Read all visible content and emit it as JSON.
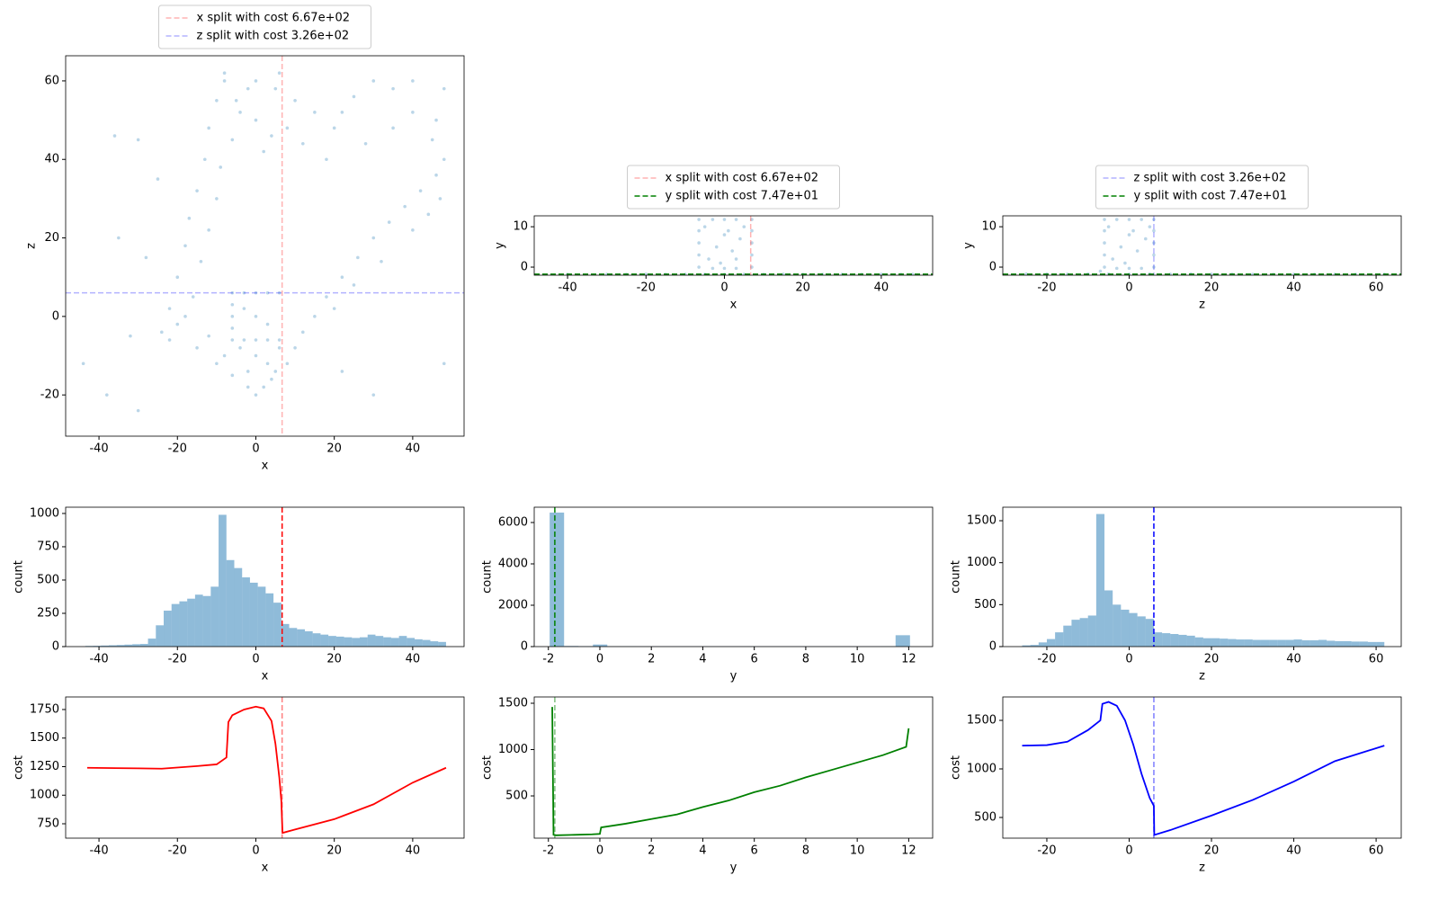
{
  "chart_data": [
    {
      "type": "scatter",
      "xlabel": "x",
      "ylabel": "z",
      "color": "#1f77b4",
      "alpha": 0.3,
      "x": [
        -24,
        -22,
        -20,
        -18,
        -17,
        -15,
        -13,
        -12,
        -10,
        -8,
        -20,
        -16,
        -14,
        -12,
        -10,
        -9,
        -6,
        -4,
        -2,
        -18,
        -22,
        -15,
        -10,
        -6,
        -2,
        0,
        2,
        5,
        -12,
        -8,
        -4,
        0,
        3,
        6,
        -2,
        4,
        8,
        10,
        12,
        15,
        -6,
        -6,
        -6,
        -6,
        -6,
        -3,
        0,
        3,
        6,
        -3,
        0,
        3,
        6,
        0,
        -3,
        3,
        18,
        22,
        26,
        30,
        34,
        38,
        42,
        46,
        48,
        20,
        25,
        32,
        40,
        44,
        47,
        46,
        48,
        45,
        40,
        35,
        0,
        5,
        10,
        15,
        20,
        25,
        30,
        35,
        40,
        -5,
        0,
        8,
        12,
        18,
        2,
        4,
        28,
        22,
        6,
        -8,
        -44,
        -38,
        -30,
        -35,
        -28,
        -32,
        -30,
        22,
        30,
        48,
        -36,
        -25
      ],
      "y": [
        -4,
        2,
        10,
        18,
        25,
        32,
        40,
        48,
        55,
        60,
        -2,
        5,
        14,
        22,
        30,
        38,
        45,
        52,
        58,
        0,
        -6,
        -8,
        -12,
        -15,
        -18,
        -20,
        -18,
        -14,
        -5,
        -10,
        -8,
        -10,
        -12,
        -8,
        -14,
        -16,
        -12,
        -8,
        -4,
        0,
        6,
        3,
        0,
        -3,
        -6,
        -6,
        -6,
        -6,
        -6,
        6,
        6,
        6,
        6,
        0,
        2,
        -2,
        5,
        10,
        15,
        20,
        24,
        28,
        32,
        36,
        40,
        2,
        8,
        14,
        22,
        26,
        30,
        50,
        58,
        45,
        52,
        48,
        60,
        58,
        55,
        52,
        48,
        56,
        60,
        58,
        60,
        55,
        50,
        48,
        44,
        40,
        42,
        46,
        44,
        52,
        62,
        62,
        -12,
        -20,
        -24,
        20,
        15,
        -5,
        45,
        -14,
        -20,
        -12,
        46,
        35
      ],
      "xlim": [
        -48.5,
        53.1
      ],
      "ylim": [
        -30.5,
        66.4
      ],
      "xticks": [
        -40,
        -20,
        0,
        20,
        40
      ],
      "yticks": [
        -20,
        0,
        20,
        40,
        60
      ],
      "lines": [
        {
          "name": "x split with cost 6.67e+02",
          "orient": "v",
          "at": 6.7,
          "color": "#ff0000",
          "alpha": 0.3
        },
        {
          "name": "z split with cost 3.26e+02",
          "orient": "h",
          "at": 6,
          "color": "#0000ff",
          "alpha": 0.3
        }
      ],
      "legend": "top"
    },
    {
      "type": "scatter",
      "xlabel": "x",
      "ylabel": "y",
      "color": "#1f77b4",
      "alpha": 0.3,
      "x": [
        -40,
        -30,
        -25,
        -20,
        -15,
        -10,
        -5,
        0,
        5,
        10,
        15,
        20,
        25,
        30,
        35,
        40,
        45,
        48,
        -6.5,
        -6.5,
        -6.5,
        -6.5,
        -6.5,
        7,
        7,
        7,
        7,
        7,
        -3,
        0,
        3,
        -3,
        0,
        3,
        -4,
        -2,
        0,
        2,
        4,
        5,
        -1,
        1,
        -5,
        3
      ],
      "y": [
        -1.8,
        -1.8,
        -1.8,
        -1.75,
        -1.8,
        -1.8,
        -1.8,
        -1.8,
        -1.8,
        -1.8,
        -1.75,
        -1.8,
        -1.8,
        -1.8,
        -1.8,
        -1.8,
        -1.8,
        -1.8,
        0,
        3,
        6,
        9,
        11.8,
        0,
        3,
        6,
        9,
        11.8,
        11.8,
        11.8,
        11.8,
        -0.3,
        -0.3,
        -0.3,
        2,
        5,
        8,
        4,
        7,
        10,
        1,
        9,
        10,
        2
      ],
      "xlim": [
        -48.5,
        53.1
      ],
      "ylim": [
        -2.0,
        12.7
      ],
      "xticks": [
        -40,
        -20,
        0,
        20,
        40
      ],
      "yticks": [
        0,
        10
      ],
      "lines": [
        {
          "name": "x split with cost 6.67e+02",
          "orient": "v",
          "at": 6.7,
          "color": "#ff0000",
          "alpha": 0.3
        },
        {
          "name": "y split with cost 7.47e+01",
          "orient": "h",
          "at": -1.75,
          "color": "#008000",
          "alpha": 1
        }
      ],
      "legend": "top"
    },
    {
      "type": "scatter",
      "xlabel": "z",
      "ylabel": "y",
      "color": "#1f77b4",
      "alpha": 0.3,
      "x": [
        -25,
        -20,
        -15,
        -10,
        -5,
        0,
        5,
        10,
        15,
        20,
        25,
        30,
        35,
        40,
        45,
        50,
        55,
        62,
        -6,
        -6,
        -6,
        -6,
        -6,
        6,
        6,
        6,
        6,
        6,
        -3,
        0,
        3,
        -3,
        0,
        3,
        -4,
        -2,
        0,
        2,
        4,
        5,
        -1,
        1,
        -5,
        -7
      ],
      "y": [
        -1.7,
        -1.7,
        -1.75,
        -1.7,
        -1.7,
        -1.75,
        -1.7,
        -1.75,
        -1.7,
        -1.75,
        -1.75,
        -1.8,
        -1.8,
        -1.8,
        -1.8,
        -1.8,
        -1.8,
        -1.8,
        0,
        3,
        6,
        9,
        11.8,
        0,
        3,
        6,
        9,
        11.8,
        11.8,
        11.8,
        11.8,
        -0.3,
        -0.3,
        -0.3,
        2,
        5,
        8,
        4,
        7,
        10,
        1,
        9,
        10,
        -1
      ],
      "xlim": [
        -30.7,
        66.1
      ],
      "ylim": [
        -2.0,
        12.7
      ],
      "xticks": [
        -20,
        0,
        20,
        40,
        60
      ],
      "yticks": [
        0,
        10
      ],
      "lines": [
        {
          "name": "z split with cost 3.26e+02",
          "orient": "v",
          "at": 6,
          "color": "#0000ff",
          "alpha": 0.3
        },
        {
          "name": "y split with cost 7.47e+01",
          "orient": "h",
          "at": -1.75,
          "color": "#008000",
          "alpha": 1
        }
      ],
      "legend": "top"
    },
    {
      "type": "histogram",
      "xlabel": "x",
      "ylabel": "count",
      "color": "#1f77b4",
      "alpha": 0.5,
      "bins": [
        -43.5,
        -41.5,
        -39.5,
        -37.5,
        -35.5,
        -33.5,
        -31.5,
        -29.5,
        -27.5,
        -25.5,
        -23.5,
        -21.5,
        -19.5,
        -17.5,
        -15.5,
        -13.5,
        -11.5,
        -9.5,
        -7.5,
        -5.5,
        -3.5,
        -1.5,
        0.5,
        2.5,
        4.5,
        6.5,
        8.5,
        10.5,
        12.5,
        14.5,
        16.5,
        18.5,
        20.5,
        22.5,
        24.5,
        26.5,
        28.5,
        30.5,
        32.5,
        34.5,
        36.5,
        38.5,
        40.5,
        42.5,
        44.5,
        46.5,
        48.5
      ],
      "counts": [
        5,
        6,
        8,
        10,
        12,
        15,
        18,
        20,
        60,
        160,
        270,
        320,
        340,
        360,
        390,
        380,
        450,
        990,
        650,
        590,
        520,
        480,
        450,
        400,
        330,
        170,
        140,
        130,
        115,
        100,
        90,
        80,
        75,
        70,
        65,
        70,
        90,
        80,
        70,
        65,
        80,
        65,
        55,
        50,
        40,
        35
      ],
      "xlim": [
        -48.5,
        53.1
      ],
      "ylim": [
        0,
        1047
      ],
      "xticks": [
        -40,
        -20,
        0,
        20,
        40
      ],
      "yticks": [
        0,
        250,
        500,
        750,
        1000
      ],
      "lines": [
        {
          "orient": "v",
          "at": 6.7,
          "color": "#ff0000",
          "alpha": 1
        }
      ]
    },
    {
      "type": "histogram",
      "xlabel": "y",
      "ylabel": "count",
      "color": "#1f77b4",
      "alpha": 0.5,
      "bins": [
        -1.95,
        -1.39,
        -0.83,
        -0.27,
        0.29,
        0.85,
        1.41,
        1.97,
        2.53,
        3.09,
        3.65,
        4.21,
        4.77,
        5.33,
        5.89,
        6.45,
        7.01,
        7.57,
        8.13,
        8.69,
        9.25,
        9.81,
        10.37,
        10.93,
        11.49,
        12.05
      ],
      "counts": [
        6480,
        30,
        20,
        100,
        15,
        12,
        10,
        10,
        10,
        10,
        10,
        10,
        10,
        10,
        10,
        10,
        10,
        10,
        10,
        10,
        10,
        10,
        10,
        12,
        550
      ],
      "xlim": [
        -2.55,
        12.93
      ],
      "ylim": [
        0,
        6740
      ],
      "xticks": [
        -2,
        0,
        2,
        4,
        6,
        8,
        10,
        12
      ],
      "yticks": [
        0,
        2000,
        4000,
        6000
      ],
      "lines": [
        {
          "orient": "v",
          "at": -1.75,
          "color": "#008000",
          "alpha": 1
        }
      ]
    },
    {
      "type": "histogram",
      "xlabel": "z",
      "ylabel": "count",
      "color": "#1f77b4",
      "alpha": 0.5,
      "bins": [
        -26,
        -24,
        -22,
        -20,
        -18,
        -16,
        -14,
        -12,
        -10,
        -8,
        -6,
        -4,
        -2,
        0,
        2,
        4,
        6,
        8,
        10,
        12,
        14,
        16,
        18,
        20,
        22,
        24,
        26,
        28,
        30,
        32,
        34,
        36,
        38,
        40,
        42,
        44,
        46,
        48,
        50,
        52,
        54,
        56,
        58,
        60,
        62
      ],
      "counts": [
        15,
        20,
        50,
        90,
        170,
        250,
        320,
        340,
        370,
        1580,
        670,
        500,
        440,
        400,
        360,
        330,
        170,
        160,
        150,
        140,
        130,
        110,
        100,
        100,
        95,
        90,
        85,
        85,
        80,
        80,
        80,
        80,
        80,
        85,
        75,
        75,
        80,
        70,
        65,
        65,
        60,
        60,
        55,
        55
      ],
      "xlim": [
        -30.7,
        66.1
      ],
      "ylim": [
        0,
        1661
      ],
      "xticks": [
        -20,
        0,
        20,
        40,
        60
      ],
      "yticks": [
        0,
        500,
        1000,
        1500
      ],
      "lines": [
        {
          "orient": "v",
          "at": 6,
          "color": "#0000ff",
          "alpha": 1
        }
      ]
    },
    {
      "type": "line",
      "xlabel": "x",
      "ylabel": "cost",
      "color": "#ff0000",
      "x": [
        -43,
        -30,
        -24,
        -15,
        -10,
        -7.5,
        -7,
        -6,
        -3,
        0,
        2,
        4,
        5,
        6,
        6.5,
        6.8,
        10,
        20,
        30,
        40,
        48.5
      ],
      "y": [
        1240,
        1235,
        1232,
        1255,
        1270,
        1330,
        1640,
        1700,
        1750,
        1775,
        1760,
        1650,
        1450,
        1150,
        950,
        670,
        700,
        790,
        920,
        1110,
        1240
      ],
      "xlim": [
        -48.5,
        53.1
      ],
      "ylim": [
        624,
        1860
      ],
      "xticks": [
        -40,
        -20,
        0,
        20,
        40
      ],
      "yticks": [
        750,
        1000,
        1250,
        1500,
        1750
      ],
      "lines": [
        {
          "orient": "v",
          "at": 6.7,
          "color": "#ff0000",
          "alpha": 0.5
        }
      ]
    },
    {
      "type": "line",
      "xlabel": "y",
      "ylabel": "cost",
      "color": "#008000",
      "x": [
        -1.85,
        -1.8,
        -1.7,
        -1,
        -0.3,
        0,
        0.05,
        1,
        2,
        3,
        4,
        5,
        6,
        7,
        8,
        9,
        10,
        11,
        11.9,
        12
      ],
      "y": [
        1460,
        80,
        75,
        80,
        85,
        90,
        160,
        200,
        250,
        300,
        380,
        450,
        540,
        610,
        700,
        780,
        860,
        940,
        1030,
        1230
      ],
      "xlim": [
        -2.55,
        12.93
      ],
      "ylim": [
        44,
        1568
      ],
      "xticks": [
        -2,
        0,
        2,
        4,
        6,
        8,
        10,
        12
      ],
      "yticks": [
        500,
        1000,
        1500
      ],
      "lines": [
        {
          "orient": "v",
          "at": -1.75,
          "color": "#008000",
          "alpha": 0.5
        }
      ]
    },
    {
      "type": "line",
      "xlabel": "z",
      "ylabel": "cost",
      "color": "#0000ff",
      "x": [
        -26,
        -20,
        -15,
        -10,
        -7,
        -6.5,
        -5,
        -3,
        -1,
        1,
        3,
        5,
        6,
        6.1,
        10,
        20,
        30,
        40,
        50,
        62
      ],
      "y": [
        1240,
        1245,
        1280,
        1400,
        1500,
        1670,
        1690,
        1650,
        1500,
        1250,
        950,
        700,
        620,
        320,
        370,
        520,
        680,
        870,
        1080,
        1240
      ],
      "xlim": [
        -30.7,
        66.1
      ],
      "ylim": [
        287,
        1741
      ],
      "xticks": [
        -20,
        0,
        20,
        40,
        60
      ],
      "yticks": [
        500,
        1000,
        1500
      ],
      "lines": [
        {
          "orient": "v",
          "at": 6,
          "color": "#0000ff",
          "alpha": 0.5
        }
      ]
    }
  ]
}
